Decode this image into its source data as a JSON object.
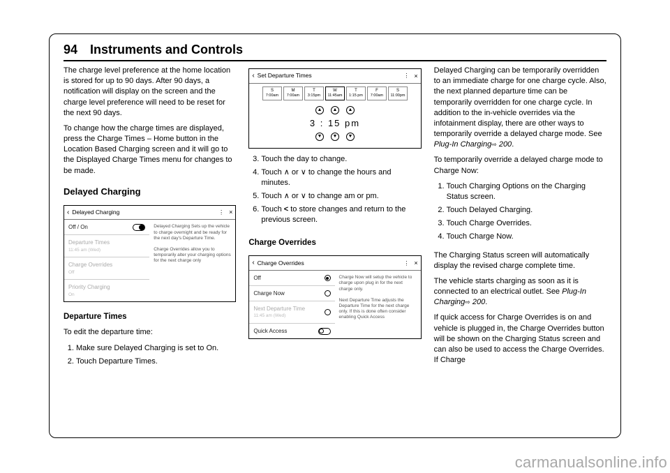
{
  "page_number": "94",
  "page_title": "Instruments and Controls",
  "watermark": "carmanualsonline.info",
  "col1": {
    "p1": "The charge level preference at the home location is stored for up to 90 days. After 90 days, a notification will display on the screen and the charge level preference will need to be reset for the next 90 days.",
    "p2": "To change how the charge times are displayed, press the Charge Times – Home button in the Location Based Charging screen and it will go to the Displayed Charge Times menu for changes to be made.",
    "h_delayed": "Delayed Charging",
    "h_dep": "Departure Times",
    "p3": "To edit the departure time:",
    "li1": "Make sure Delayed Charging is set to On.",
    "li2": "Touch Departure Times."
  },
  "col2": {
    "li3": "Touch the day to change.",
    "li4_a": "Touch ",
    "li4_b": " or ",
    "li4_c": " to change the hours and minutes.",
    "li5_a": "Touch ",
    "li5_b": " or ",
    "li5_c": " to change am or pm.",
    "li6_a": "Touch ",
    "li6_b": " to store changes and return to the previous screen.",
    "h_overrides": "Charge Overrides"
  },
  "col3": {
    "p1_a": "Delayed Charging can be temporarily overridden to an immediate charge for one charge cycle. Also, the next planned departure time can be temporarily overridden for one charge cycle. In addition to the in-vehicle overrides via the infotainment display, there are other ways to temporarily override a delayed charge mode. See ",
    "p1_link": "Plug-In Charging",
    "p1_b": " 200",
    "p1_c": ".",
    "p2": "To temporarily override a delayed charge mode to Charge Now:",
    "li1": "Touch Charging Options on the Charging Status screen.",
    "li2": "Touch Delayed Charging.",
    "li3": "Touch Charge Overrides.",
    "li4": "Touch Charge Now.",
    "p3": "The Charging Status screen will automatically display the revised charge complete time.",
    "p4_a": "The vehicle starts charging as soon as it is connected to an electrical outlet. See ",
    "p4_link": "Plug-In Charging",
    "p4_b": " 200",
    "p4_c": ".",
    "p5": "If quick access for Charge Overrides is on and vehicle is plugged in, the Charge Overrides button will be shown on the Charging Status screen and can also be used to access the Charge Overrides. If Charge"
  },
  "panel_delayed": {
    "title": "Delayed Charging",
    "rows": [
      {
        "label": "Off / On",
        "sub": "",
        "control": "toggle-on"
      },
      {
        "label": "Departure Times",
        "sub": "11:45 am (Wed)",
        "faded": true
      },
      {
        "label": "Charge Overrides",
        "sub": "Off",
        "faded": true
      },
      {
        "label": "Priority Charging",
        "sub": "On",
        "faded": true
      }
    ],
    "side_texts": [
      "Delayed Charging Sets up the vehicle to charge overnight and be ready for the next day's Departure Time.",
      "Charge Overrides allow you to temporarily alter your charging options for the next charge only"
    ]
  },
  "panel_departure": {
    "title": "Set Departure Times",
    "days": [
      {
        "d": "S",
        "t": "7:00am"
      },
      {
        "d": "M",
        "t": "7:00am"
      },
      {
        "d": "T",
        "t": "3:15pm"
      },
      {
        "d": "W",
        "t": "11:45am",
        "sel": true
      },
      {
        "d": "T",
        "t": "1:15 pm"
      },
      {
        "d": "F",
        "t": "7:00am"
      },
      {
        "d": "S",
        "t": "11:00pm"
      }
    ],
    "time_display": "3 : 15  pm"
  },
  "panel_overrides": {
    "title": "Charge Overrides",
    "rows": [
      {
        "label": "Off",
        "control": "radio-sel"
      },
      {
        "label": "Charge Now",
        "control": "radio"
      },
      {
        "label": "Next Departure Time",
        "sub": "11:45 am (Wed)",
        "faded": true,
        "control": "radio"
      },
      {
        "label": "Quick Access",
        "control": "toggle-off"
      }
    ],
    "side_texts": [
      "Charge Now will setup the vehicle to charge upon plug in for the next charge only.",
      "Next Departure Time adjusts the Departure Time for the next charge only.  If this is done often consider enabling Quick Access"
    ]
  },
  "glyphs": {
    "up": "∧",
    "down": "∨",
    "left": "<",
    "link": "⇨"
  }
}
